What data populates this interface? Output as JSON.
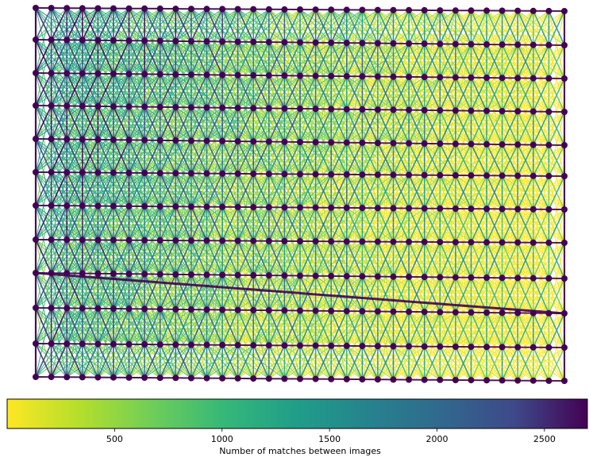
{
  "graph": {
    "description_kind": "image-match-graph",
    "node_color": "#440154",
    "edge_colormap": [
      "#fde725",
      "#5ec962",
      "#21918c",
      "#3b528b",
      "#440154"
    ]
  },
  "colorbar": {
    "ticks": [
      {
        "value": 500,
        "label": "500"
      },
      {
        "value": 1000,
        "label": "1000"
      },
      {
        "value": 1500,
        "label": "1500"
      },
      {
        "value": 2000,
        "label": "2000"
      },
      {
        "value": 2500,
        "label": "2500"
      }
    ],
    "range": [
      0,
      2700
    ],
    "label": "Number of matches between images"
  }
}
